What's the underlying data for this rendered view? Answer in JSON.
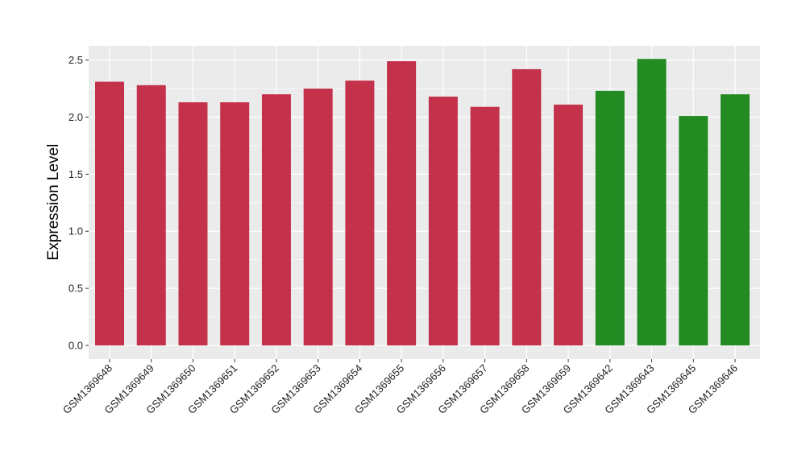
{
  "chart_data": {
    "type": "bar",
    "title": "",
    "xlabel": "",
    "ylabel": "Expression Level",
    "ylim": [
      0,
      2.58
    ],
    "yticks": [
      0.0,
      0.5,
      1.0,
      1.5,
      2.0,
      2.5
    ],
    "ytick_labels": [
      "0.0",
      "0.5",
      "1.0",
      "1.5",
      "2.0",
      "2.5"
    ],
    "grid": true,
    "categories": [
      "GSM1369648",
      "GSM1369649",
      "GSM1369650",
      "GSM1369651",
      "GSM1369652",
      "GSM1369653",
      "GSM1369654",
      "GSM1369655",
      "GSM1369656",
      "GSM1369657",
      "GSM1369658",
      "GSM1369659",
      "GSM1369642",
      "GSM1369643",
      "GSM1369645",
      "GSM1369646"
    ],
    "values": [
      2.31,
      2.28,
      2.13,
      2.13,
      2.2,
      2.25,
      2.32,
      2.49,
      2.18,
      2.09,
      2.42,
      2.11,
      2.23,
      2.51,
      2.01,
      2.2
    ],
    "bar_colors": [
      "#c3314a",
      "#c3314a",
      "#c3314a",
      "#c3314a",
      "#c3314a",
      "#c3314a",
      "#c3314a",
      "#c3314a",
      "#c3314a",
      "#c3314a",
      "#c3314a",
      "#c3314a",
      "#228b22",
      "#228b22",
      "#228b22",
      "#228b22"
    ],
    "panel_background": "#ebebeb",
    "grid_color": "#ffffff"
  }
}
